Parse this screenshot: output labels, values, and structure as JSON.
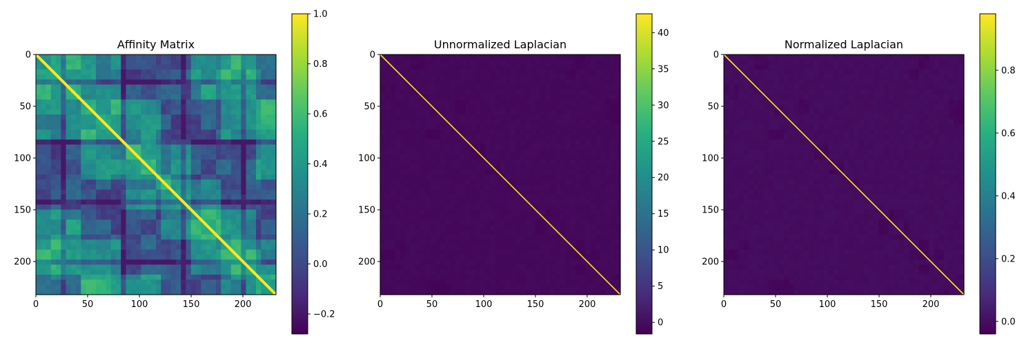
{
  "chart_data": [
    {
      "type": "heatmap",
      "title": "Affinity Matrix",
      "matrix_size": 232,
      "colormap": "viridis",
      "x_ticks": [
        0,
        50,
        100,
        150,
        200
      ],
      "y_ticks": [
        0,
        50,
        100,
        150,
        200
      ],
      "xlim": [
        0,
        232
      ],
      "ylim": [
        232,
        0
      ],
      "colorbar": {
        "min": -0.28,
        "max": 1.0,
        "ticks": [
          -0.2,
          0.0,
          0.2,
          0.4,
          0.6,
          0.8,
          1.0
        ],
        "tick_labels": [
          "−0.2",
          "0.0",
          "0.2",
          "0.4",
          "0.6",
          "0.8",
          "1.0"
        ]
      },
      "diagonal_value": 1.0,
      "background_range": [
        -0.2,
        0.6
      ]
    },
    {
      "type": "heatmap",
      "title": "Unnormalized Laplacian",
      "matrix_size": 232,
      "colormap": "viridis",
      "x_ticks": [
        0,
        50,
        100,
        150,
        200
      ],
      "y_ticks": [
        0,
        50,
        100,
        150,
        200
      ],
      "xlim": [
        0,
        232
      ],
      "ylim": [
        232,
        0
      ],
      "colorbar": {
        "min": -1.6,
        "max": 42.6,
        "ticks": [
          0,
          5,
          10,
          15,
          20,
          25,
          30,
          35,
          40
        ],
        "tick_labels": [
          "0",
          "5",
          "10",
          "15",
          "20",
          "25",
          "30",
          "35",
          "40"
        ]
      },
      "diagonal_value": 42.6,
      "background_range": [
        -1.6,
        0.2
      ]
    },
    {
      "type": "heatmap",
      "title": "Normalized Laplacian",
      "matrix_size": 232,
      "colormap": "viridis",
      "x_ticks": [
        0,
        50,
        100,
        150,
        200
      ],
      "y_ticks": [
        0,
        50,
        100,
        150,
        200
      ],
      "xlim": [
        0,
        232
      ],
      "ylim": [
        232,
        0
      ],
      "colorbar": {
        "min": -0.04,
        "max": 0.98,
        "ticks": [
          0.0,
          0.2,
          0.4,
          0.6,
          0.8
        ],
        "tick_labels": [
          "0.0",
          "0.2",
          "0.4",
          "0.6",
          "0.8"
        ]
      },
      "diagonal_value": 0.98,
      "background_range": [
        -0.04,
        0.02
      ]
    }
  ]
}
